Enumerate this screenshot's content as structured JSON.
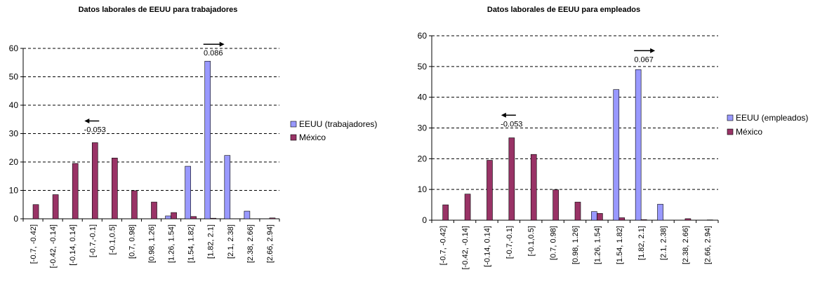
{
  "colors": {
    "series1": "#9999ff",
    "series2": "#993366",
    "grid": "#000000"
  },
  "chart_data": [
    {
      "type": "bar",
      "title": "Datos laborales de EEUU para trabajadores",
      "categories": [
        "[-0.7, -0.42]",
        "[-0.42, -0.14]",
        "[-0.14, 0.14]",
        "[-0.7,-0.1]",
        "[-0.1,0.5]",
        "[0.7, 0.98]",
        "[0.98, 1.26]",
        "[1.26, 1.54]",
        "[1.54, 1.82]",
        "[1.82, 2.1]",
        "[2.1, 2.38]",
        "[2.38, 2.66]",
        "[2.66, 2.94]"
      ],
      "series": [
        {
          "name": "EEUU (trabajadores)",
          "values": [
            0,
            0,
            0,
            0,
            0,
            0,
            0,
            1,
            18.5,
            55.5,
            22.3,
            2.7,
            0
          ]
        },
        {
          "name": "México",
          "values": [
            5,
            8.5,
            19.5,
            26.8,
            21.4,
            9.9,
            5.9,
            2.2,
            0.8,
            0.2,
            0,
            0,
            0.3
          ]
        }
      ],
      "ylim": [
        0,
        60
      ],
      "yticks": [
        0,
        10,
        20,
        30,
        40,
        50,
        60
      ],
      "grid": true,
      "legend_position": "right",
      "annotations": [
        {
          "text": "-0.053",
          "x": 3,
          "y": 30.5,
          "arrow": "left"
        },
        {
          "text": "0.086",
          "x": 9,
          "y": 57.5,
          "arrow": "right"
        }
      ]
    },
    {
      "type": "bar",
      "title": "Datos laborales de EEUU para empleados",
      "categories": [
        "[-0.7, -0.42]",
        "[-0.42, -0.14]",
        "[-0.14, 0.14]",
        "[-0.7,-0.1]",
        "[-0.1,0.5]",
        "[0.7, 0.98]",
        "[0.98, 1.26]",
        "[1.26, 1.54]",
        "[1.54, 1.82]",
        "[1.82, 2.1]",
        "[2.1, 2.38]",
        "[2.38, 2.66]",
        "[2.66, 2.94]"
      ],
      "series": [
        {
          "name": "EEUU (empleados)",
          "values": [
            0,
            0,
            0,
            0,
            0,
            0,
            0,
            2.8,
            42.5,
            49,
            5.2,
            0,
            0
          ]
        },
        {
          "name": "México",
          "values": [
            5,
            8.5,
            19.5,
            26.8,
            21.4,
            9.9,
            5.9,
            2.2,
            0.8,
            0.2,
            0,
            0.5,
            0.1
          ]
        }
      ],
      "ylim": [
        0,
        60
      ],
      "yticks": [
        0,
        10,
        20,
        30,
        40,
        50,
        60
      ],
      "grid": true,
      "legend_position": "right",
      "annotations": [
        {
          "text": "-0.053",
          "x": 3,
          "y": 30.5,
          "arrow": "left"
        },
        {
          "text": "0.067",
          "x": 9,
          "y": 51.5,
          "arrow": "right"
        }
      ]
    }
  ]
}
